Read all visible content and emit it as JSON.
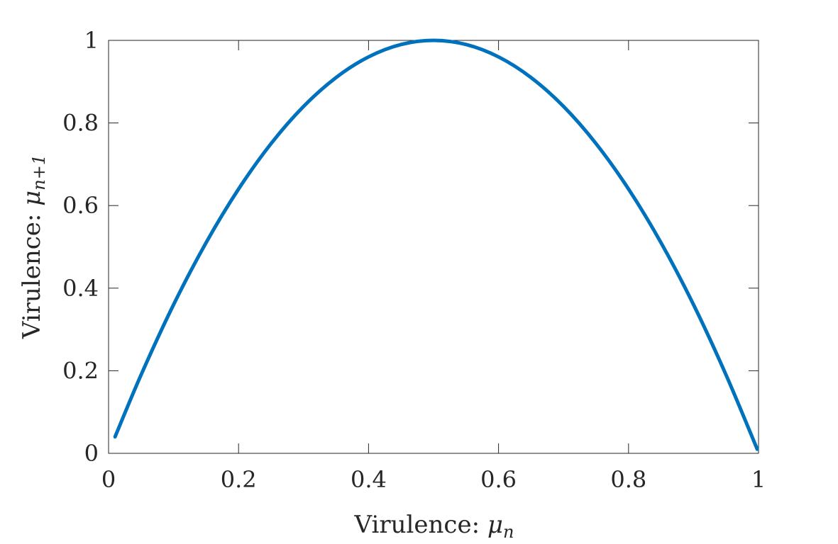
{
  "chart_data": {
    "type": "line",
    "xlabel": {
      "text": "Virulence: ",
      "var": "μ",
      "sub": "n"
    },
    "ylabel": {
      "text": "Virulence: ",
      "var": "μ",
      "sub": "n+1"
    },
    "xlim": [
      0,
      1
    ],
    "ylim": [
      0,
      1
    ],
    "xticks": [
      0,
      0.2,
      0.4,
      0.6,
      0.8,
      1
    ],
    "xtick_labels": [
      "0",
      "0.2",
      "0.4",
      "0.6",
      "0.8",
      "1"
    ],
    "yticks": [
      0,
      0.2,
      0.4,
      0.6,
      0.8,
      1
    ],
    "ytick_labels": [
      "0",
      "0.2",
      "0.4",
      "0.6",
      "0.8",
      "1"
    ],
    "grid": false,
    "box": true,
    "series": [
      {
        "color": "#0072BD",
        "x": [
          0.01,
          0.05,
          0.1,
          0.15,
          0.2,
          0.25,
          0.3,
          0.35,
          0.4,
          0.45,
          0.5,
          0.55,
          0.6,
          0.65,
          0.7,
          0.75,
          0.8,
          0.85,
          0.9,
          0.95,
          0.998
        ],
        "y": [
          0.04,
          0.19,
          0.36,
          0.51,
          0.64,
          0.75,
          0.84,
          0.91,
          0.96,
          0.99,
          1.0,
          0.99,
          0.96,
          0.91,
          0.84,
          0.75,
          0.64,
          0.51,
          0.36,
          0.19,
          0.01
        ]
      }
    ]
  }
}
